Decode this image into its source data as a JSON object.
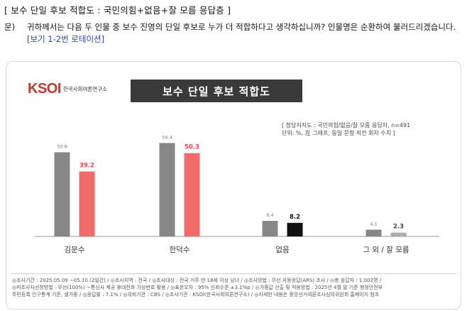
{
  "header": "[ 보수 단일 후보 적합도 : 국민의힘+없음+잘 모름 응답층 ]",
  "question": {
    "label": "문)",
    "text": "귀하께서는 다음 두 인물 중 보수 진영의 단일 후보로 누가 더 적합하다고 생각하십니까? 인물명은 순환하여 불러드리겠습니다.",
    "note": "[보기 1-2번 로테이션]"
  },
  "logo": {
    "mark": "KSOI",
    "org": "한국사회여론연구소"
  },
  "chart_data": {
    "type": "bar",
    "title": "보수 단일 후보 적합도",
    "meta_lines": [
      "[ 정당지지도 : 국민의힘/없음/잘 모름 응답자, n=491",
      "단위: %, 左 그래프, 동일 문항 직전 회차 수치 ]"
    ],
    "categories": [
      "김문수",
      "한덕수",
      "없음",
      "그 외 / 잘 모름"
    ],
    "series": [
      {
        "values": [
          50.8,
          56.4,
          9.4,
          4.1
        ],
        "color": "#878787"
      },
      {
        "values": [
          39.2,
          50.3,
          8.2,
          2.3
        ],
        "colors": [
          "#f26b6b",
          "#f26b6b",
          "#111111",
          "#9a9a9a"
        ]
      }
    ],
    "ylim": [
      0,
      60
    ],
    "grid": false,
    "legend": "none"
  },
  "footer": {
    "line1": "◎조사기간 : 2025.05.09 ~05.10.(2일간) / ◎조사지역 : 전국 / ◎조사대상 : 전국 거주 만 18세 이상 남녀 / ◎조사방법 : 무선 자동응답(ARS) 조사 / ◎총 응답자 : 1,002명 /",
    "line2": "◎피조사자선정방법 : 무선(100%) ~통신사 제공 휴대전화 가상번호 활용 / ◎표본오차 : 95% 신뢰수준 ±3.1%p / ◎가중값 산출 및 적용방법 : 2025년 4월 말 기준 행정안전부",
    "line3": "주민등록 인구통계 기준, 셀가중 / ◎응답률 : 7.1% / ◎의뢰기관 : CBS / ◎조사기관 : KSOI(한국사회여론연구소) / ◎자세한 내용은 중앙선거여론조사심의위원회 홈페이지 참조"
  }
}
